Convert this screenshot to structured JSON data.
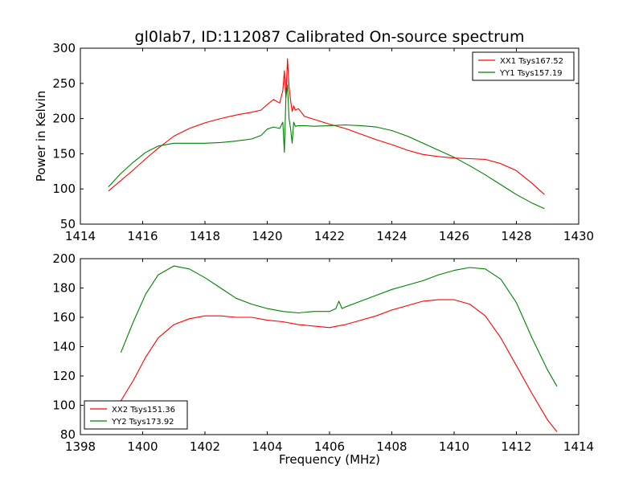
{
  "chart_data": [
    {
      "type": "line",
      "title": "gl0lab7, ID:112087 Calibrated On-source spectrum",
      "xlabel": "",
      "ylabel": "Power in Kelvin",
      "xlim": [
        1414,
        1430
      ],
      "ylim": [
        50,
        300
      ],
      "xticks": [
        1414,
        1416,
        1418,
        1420,
        1422,
        1424,
        1426,
        1428,
        1430
      ],
      "yticks": [
        50,
        100,
        150,
        200,
        250,
        300
      ],
      "legend_position": "top-right",
      "series": [
        {
          "name": "XX1 Tsys167.52",
          "color": "#ff0000",
          "x": [
            1414.9,
            1415.3,
            1415.7,
            1416.1,
            1416.5,
            1417.0,
            1417.5,
            1418.0,
            1418.5,
            1419.0,
            1419.5,
            1419.8,
            1420.0,
            1420.2,
            1420.4,
            1420.5,
            1420.55,
            1420.6,
            1420.65,
            1420.7,
            1420.75,
            1420.8,
            1420.85,
            1420.9,
            1421.0,
            1421.2,
            1421.5,
            1422.0,
            1422.5,
            1423.0,
            1423.5,
            1424.0,
            1424.5,
            1425.0,
            1425.5,
            1426.0,
            1426.5,
            1427.0,
            1427.5,
            1428.0,
            1428.5,
            1428.9
          ],
          "y": [
            97,
            112,
            127,
            143,
            158,
            175,
            186,
            194,
            200,
            205,
            209,
            212,
            220,
            227,
            222,
            240,
            268,
            230,
            285,
            245,
            225,
            210,
            218,
            212,
            214,
            203,
            199,
            192,
            186,
            178,
            170,
            163,
            155,
            149,
            146,
            144,
            143,
            142,
            136,
            126,
            108,
            92
          ]
        },
        {
          "name": "YY1 Tsys157.19",
          "color": "#008000",
          "x": [
            1414.9,
            1415.3,
            1415.7,
            1416.1,
            1416.5,
            1417.0,
            1417.5,
            1418.0,
            1418.5,
            1419.0,
            1419.5,
            1419.8,
            1420.0,
            1420.2,
            1420.4,
            1420.5,
            1420.55,
            1420.6,
            1420.65,
            1420.7,
            1420.75,
            1420.8,
            1420.85,
            1420.9,
            1421.0,
            1421.2,
            1421.5,
            1422.0,
            1422.5,
            1423.0,
            1423.5,
            1424.0,
            1424.5,
            1425.0,
            1425.5,
            1426.0,
            1426.5,
            1427.0,
            1427.5,
            1428.0,
            1428.5,
            1428.9
          ],
          "y": [
            103,
            122,
            138,
            152,
            161,
            165,
            165,
            165,
            166,
            168,
            171,
            176,
            185,
            188,
            186,
            195,
            152,
            230,
            248,
            200,
            185,
            165,
            195,
            189,
            190,
            190,
            189,
            190,
            191,
            190,
            188,
            183,
            175,
            165,
            155,
            145,
            133,
            120,
            106,
            92,
            80,
            72
          ]
        }
      ]
    },
    {
      "type": "line",
      "title": "",
      "xlabel": "Frequency (MHz)",
      "ylabel": "",
      "xlim": [
        1398,
        1414
      ],
      "ylim": [
        80,
        200
      ],
      "xticks": [
        1398,
        1400,
        1402,
        1404,
        1406,
        1408,
        1410,
        1412,
        1414
      ],
      "yticks": [
        80,
        100,
        120,
        140,
        160,
        180,
        200
      ],
      "legend_position": "bottom-left",
      "series": [
        {
          "name": "XX2 Tsys151.36",
          "color": "#ff0000",
          "x": [
            1399.3,
            1399.7,
            1400.1,
            1400.5,
            1401.0,
            1401.5,
            1402.0,
            1402.5,
            1403.0,
            1403.5,
            1404.0,
            1404.5,
            1405.0,
            1405.5,
            1406.0,
            1406.5,
            1407.0,
            1407.5,
            1408.0,
            1408.5,
            1409.0,
            1409.5,
            1410.0,
            1410.5,
            1411.0,
            1411.5,
            1412.0,
            1412.5,
            1413.0,
            1413.3
          ],
          "y": [
            103,
            117,
            133,
            146,
            155,
            159,
            161,
            161,
            160,
            160,
            158,
            157,
            155,
            154,
            153,
            155,
            158,
            161,
            165,
            168,
            171,
            172,
            172,
            169,
            161,
            146,
            127,
            108,
            90,
            82
          ]
        },
        {
          "name": "YY2 Tsys173.92",
          "color": "#008000",
          "x": [
            1399.3,
            1399.7,
            1400.1,
            1400.5,
            1401.0,
            1401.5,
            1402.0,
            1402.5,
            1403.0,
            1403.5,
            1404.0,
            1404.5,
            1405.0,
            1405.5,
            1406.0,
            1406.2,
            1406.3,
            1406.4,
            1406.5,
            1407.0,
            1407.5,
            1408.0,
            1408.5,
            1409.0,
            1409.5,
            1410.0,
            1410.5,
            1411.0,
            1411.5,
            1412.0,
            1412.5,
            1413.0,
            1413.3
          ],
          "y": [
            136,
            157,
            176,
            189,
            195,
            193,
            187,
            180,
            173,
            169,
            166,
            164,
            163,
            164,
            164,
            166,
            171,
            166,
            167,
            171,
            175,
            179,
            182,
            185,
            189,
            192,
            194,
            193,
            186,
            170,
            146,
            124,
            113
          ]
        }
      ]
    }
  ]
}
